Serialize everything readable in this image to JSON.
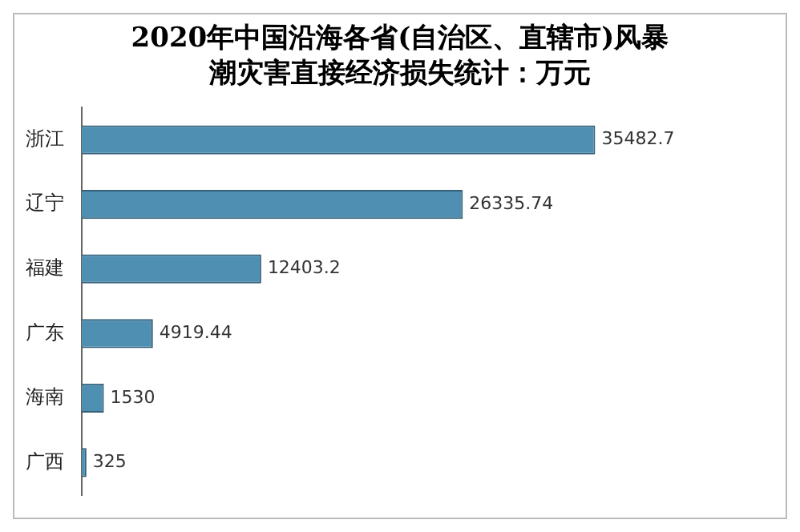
{
  "chart_data": {
    "type": "bar",
    "orientation": "horizontal",
    "title": "2020年中国沿海各省(自治区、直辖市)风暴潮灾害直接经济损失统计：万元",
    "categories": [
      "浙江",
      "辽宁",
      "福建",
      "广东",
      "海南",
      "广西"
    ],
    "values": [
      35482.7,
      26335.74,
      12403.2,
      4919.44,
      1530,
      325
    ],
    "color": "#4f8fb1",
    "data_labels": true,
    "legend": false
  }
}
